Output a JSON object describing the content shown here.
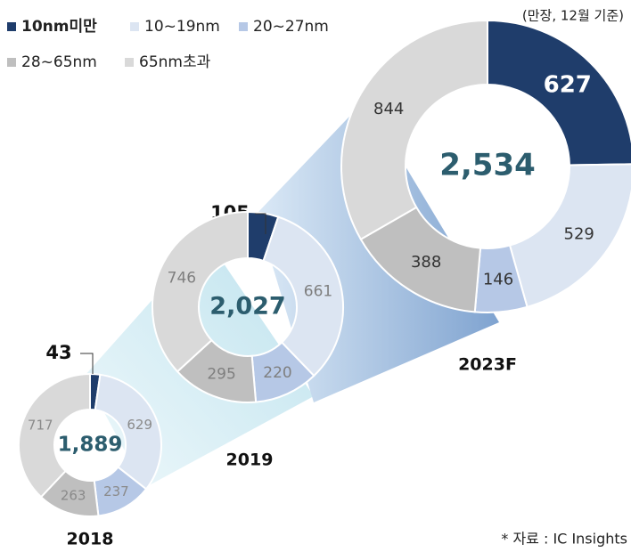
{
  "chart_data": [
    {
      "type": "pie",
      "title": "2018",
      "categories": [
        "10nm미만",
        "10~19nm",
        "20~27nm",
        "28~65nm",
        "65nm초과"
      ],
      "values": [
        43,
        629,
        237,
        263,
        717
      ],
      "colors": [
        "#1f3d6b",
        "#dce5f2",
        "#b6c8e6",
        "#bfbfbf",
        "#d9d9d9"
      ],
      "total": {
        "value": 1889,
        "label": "1,889"
      }
    },
    {
      "type": "pie",
      "title": "2019",
      "categories": [
        "10nm미만",
        "10~19nm",
        "20~27nm",
        "28~65nm",
        "65nm초과"
      ],
      "values": [
        105,
        661,
        220,
        295,
        746
      ],
      "colors": [
        "#1f3d6b",
        "#dce5f2",
        "#b6c8e6",
        "#bfbfbf",
        "#d9d9d9"
      ],
      "total": {
        "value": 2027,
        "label": "2,027"
      }
    },
    {
      "type": "pie",
      "title": "2023F",
      "categories": [
        "10nm미만",
        "10~19nm",
        "20~27nm",
        "28~65nm",
        "65nm초과"
      ],
      "values": [
        627,
        529,
        146,
        388,
        844
      ],
      "colors": [
        "#1f3d6b",
        "#dce5f2",
        "#b6c8e6",
        "#bfbfbf",
        "#d9d9d9"
      ],
      "total": {
        "value": 2534,
        "label": "2,534"
      }
    }
  ],
  "unit_note": "(만장, 12월 기준)",
  "source": "* 자료 : IC Insights"
}
